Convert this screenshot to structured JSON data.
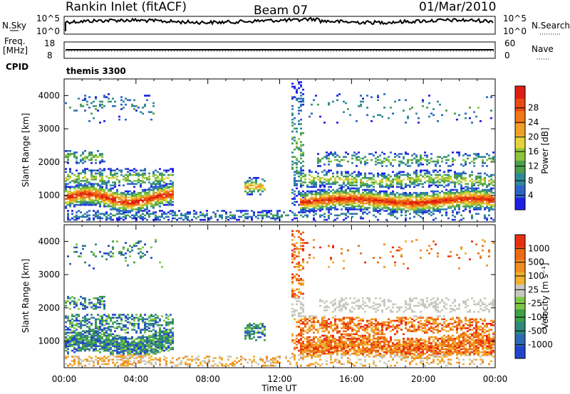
{
  "header": {
    "station": "Rankin Inlet (fitACF)",
    "beam": "Beam 07",
    "date": "01/Mar/2010"
  },
  "panels": {
    "nsky": {
      "left_label": "N.Sky",
      "right_label": "N.Search",
      "left_ticks": [
        "10^5",
        "10^0"
      ],
      "right_ticks": [
        "10^5",
        "10^0"
      ]
    },
    "freq": {
      "left_label_1": "Freq.",
      "left_label_2": "[MHz]",
      "right_label": "Nave",
      "left_ticks": [
        "18",
        "8"
      ],
      "right_ticks": [
        "60",
        "0"
      ]
    },
    "cpid": {
      "label": "CPID",
      "mode": "themis 3300"
    }
  },
  "chart_data": [
    {
      "type": "heatmap",
      "name": "power",
      "ylabel": "Slant Range [km]",
      "y_ticks": [
        1000,
        2000,
        3000,
        4000
      ],
      "ylim": [
        200,
        4500
      ],
      "x_ticks": [
        "00:00",
        "04:00",
        "08:00",
        "12:00",
        "16:00",
        "20:00",
        "00:00"
      ],
      "xlim_hours": [
        0,
        24
      ],
      "colorbar": {
        "label": "Power [dB]",
        "ticks": [
          "4",
          "8",
          "12",
          "16",
          "20",
          "24",
          "28"
        ],
        "colors": [
          "#1f1fe6",
          "#2e64c8",
          "#2f8a96",
          "#4da04a",
          "#8cc63c",
          "#e6d23c",
          "#f0a028",
          "#f07818",
          "#e84a10",
          "#e01e10"
        ]
      }
    },
    {
      "type": "heatmap",
      "name": "velocity",
      "ylabel": "Slant Range [km]",
      "y_ticks": [
        1000,
        2000,
        3000,
        4000
      ],
      "ylim": [
        200,
        4500
      ],
      "x_ticks": [
        "00:00",
        "04:00",
        "08:00",
        "12:00",
        "16:00",
        "20:00",
        "00:00"
      ],
      "xlabel": "Time UT",
      "colorbar": {
        "label": "Velocity [m s⁻¹]",
        "ticks": [
          "1000",
          "500",
          "100",
          "25",
          "-25",
          "-100",
          "-500",
          "-1000"
        ],
        "colors": [
          "#2244cc",
          "#2e68b4",
          "#2f8a78",
          "#3fa046",
          "#7cc846",
          "#c8c8c0",
          "#f0b030",
          "#f08c20",
          "#ec6a14",
          "#e83010"
        ]
      }
    }
  ]
}
